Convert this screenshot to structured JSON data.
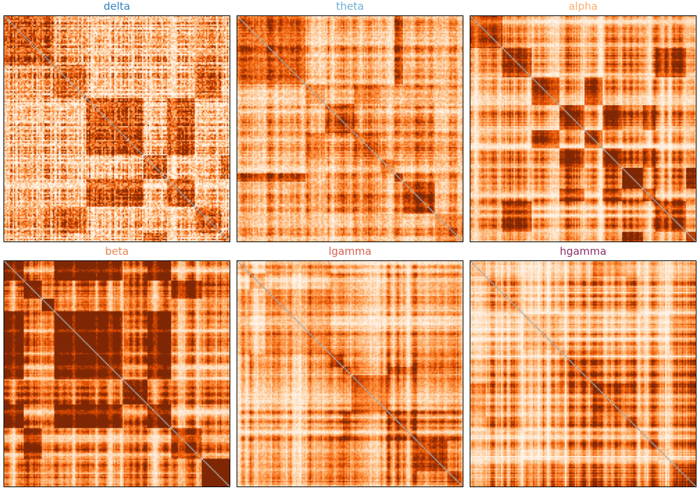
{
  "chart_data": {
    "type": "heatmap",
    "colormap": "Oranges",
    "grid": false,
    "axes_visible": false,
    "panels": [
      {
        "title": "delta",
        "title_color": "#3182bd",
        "structure": "fine-grained blocks, strong dark blocks in top-left and middle-left quadrants"
      },
      {
        "title": "theta",
        "title_color": "#6baed6",
        "structure": "medium blocks, dark band through center, light vertical stripes"
      },
      {
        "title": "alpha",
        "title_color": "#fdae6b",
        "structure": "large dark blocks top-left and center, pale horizontal and vertical bands"
      },
      {
        "title": "beta",
        "title_color": "#e6864c",
        "structure": "large dark blocks, mostly dark upper-left and central quadrants"
      },
      {
        "title": "lgamma",
        "title_color": "#d6604d",
        "structure": "striped pattern, many dark vertical bands, lighter top rows"
      },
      {
        "title": "hgamma",
        "title_color": "#8c2d6a",
        "structure": "regular striped grid of dark bands on light background"
      }
    ]
  }
}
